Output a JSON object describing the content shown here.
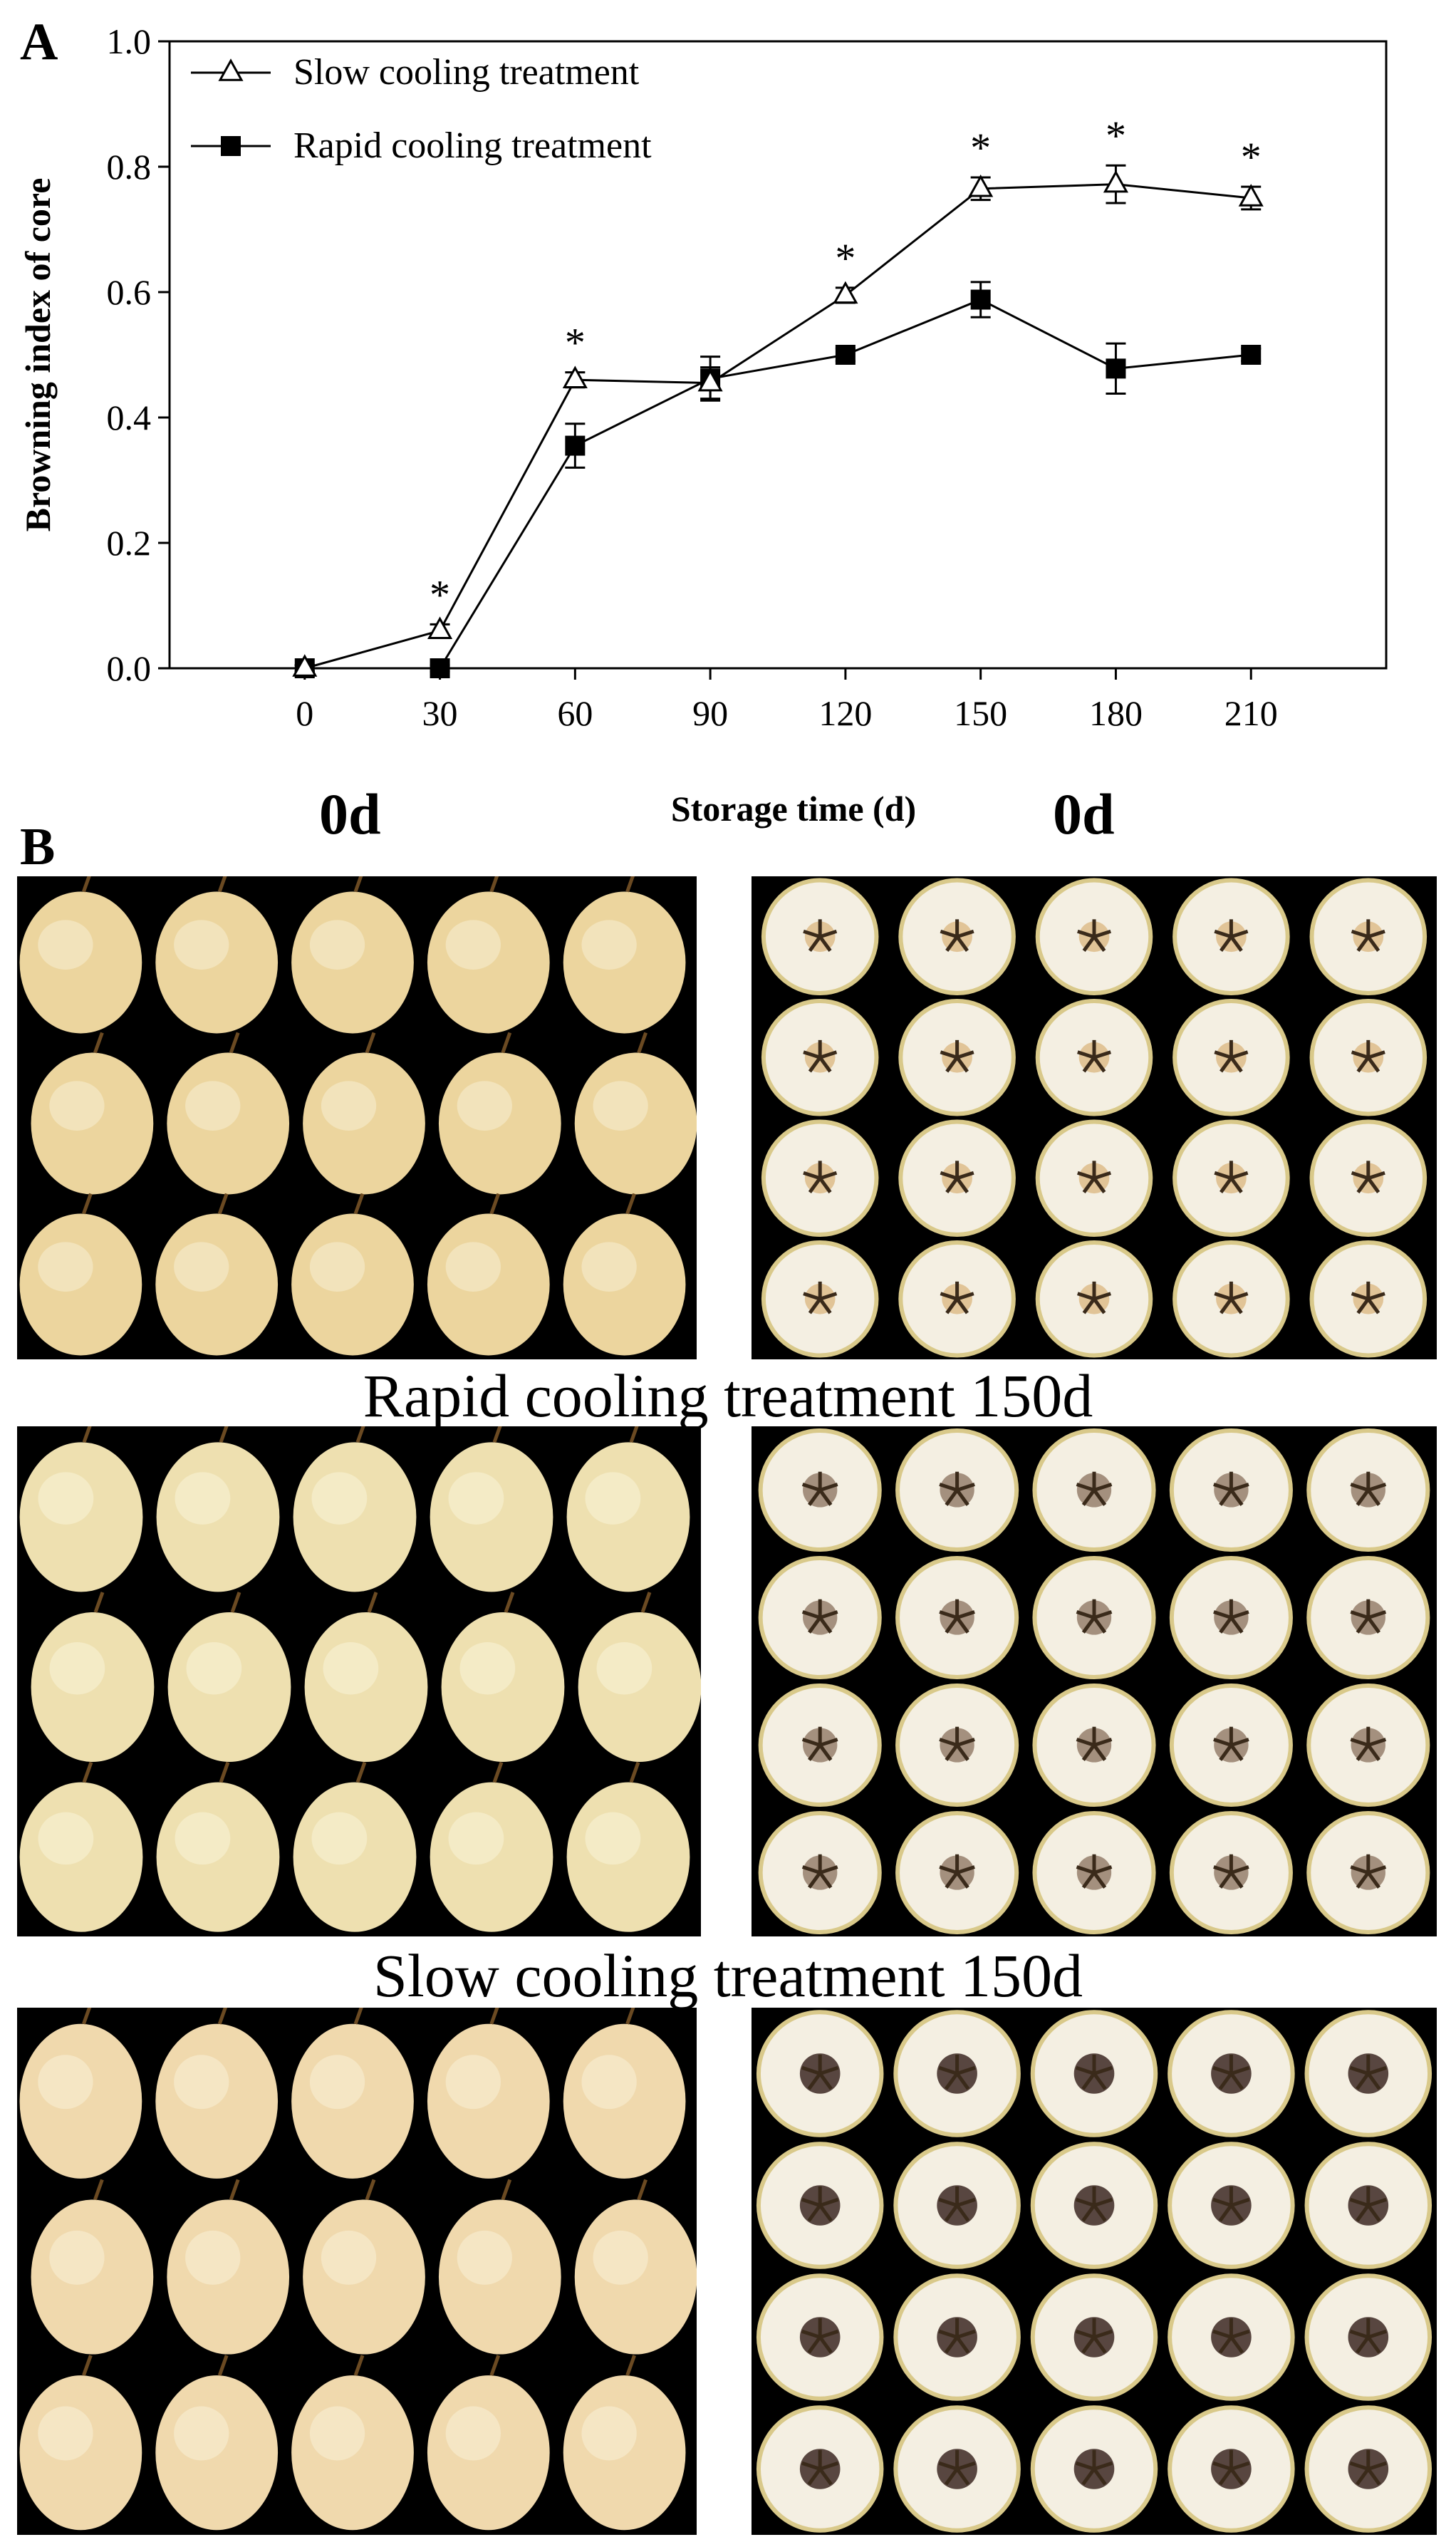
{
  "panels": {
    "a_label": "A",
    "b_label": "B"
  },
  "chart_data": {
    "type": "line",
    "x": [
      0,
      30,
      60,
      90,
      120,
      150,
      180,
      210
    ],
    "xlabel": "Storage time (d)",
    "ylabel": "Browning index of core",
    "ylim": [
      0,
      1.0
    ],
    "yticks": [
      "0.0",
      "0.2",
      "0.4",
      "0.6",
      "0.8",
      "1.0"
    ],
    "xticks": [
      "0",
      "30",
      "60",
      "90",
      "120",
      "150",
      "180",
      "210"
    ],
    "legend_position": "top-left",
    "grid": false,
    "significance_marker": "*",
    "series": [
      {
        "name": "Slow cooling treatment",
        "marker": "open-triangle",
        "values": [
          0.0,
          0.06,
          0.46,
          0.455,
          0.595,
          0.765,
          0.772,
          0.75
        ],
        "errors": [
          0.005,
          0.01,
          0.012,
          0.025,
          0.012,
          0.018,
          0.03,
          0.018
        ],
        "significant": [
          false,
          true,
          true,
          false,
          true,
          true,
          true,
          true
        ]
      },
      {
        "name": "Rapid cooling treatment",
        "marker": "filled-square",
        "values": [
          0.0,
          0.0,
          0.355,
          0.462,
          0.5,
          0.588,
          0.478,
          0.5
        ],
        "errors": [
          0.005,
          0.005,
          0.035,
          0.035,
          0.01,
          0.028,
          0.04,
          0.01
        ],
        "significant": [
          false,
          false,
          false,
          false,
          false,
          false,
          false,
          false
        ]
      }
    ]
  },
  "captions": {
    "day0_left": "0d",
    "day0_right": "0d",
    "rapid_150": "Rapid cooling treatment 150d",
    "slow_150": "Slow cooling treatment 150d"
  }
}
